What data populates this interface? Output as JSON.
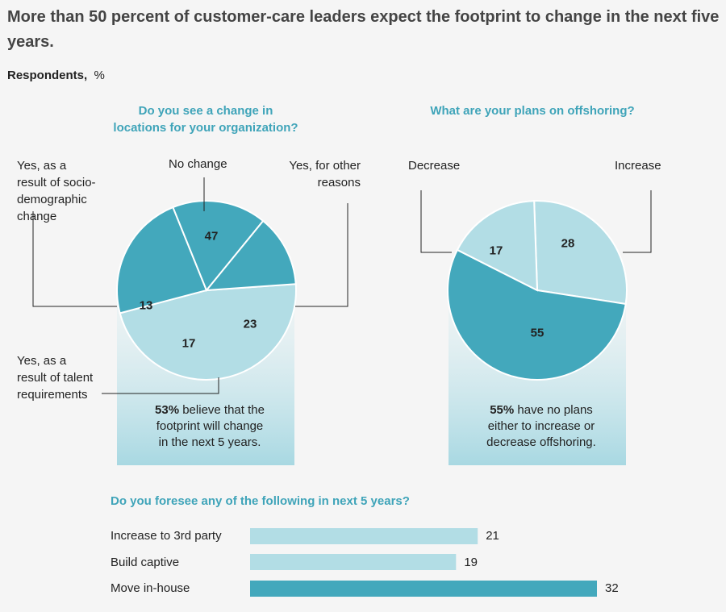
{
  "chart_data": [
    {
      "type": "pie",
      "title": "Do you see a change in locations for your organization?",
      "unit": "%",
      "slices": [
        {
          "label": "No change",
          "value": 47
        },
        {
          "label": "Yes, for other reasons",
          "value": 23
        },
        {
          "label": "Yes, as a result of talent requirements",
          "value": 17
        },
        {
          "label": "Yes, as a result of socio-demographic change",
          "value": 13
        }
      ],
      "note_bold": "53%",
      "note_text": "believe that the footprint will change in the next 5 years.",
      "colors": {
        "no_change": "#b2dde5",
        "change": "#43a8bc"
      }
    },
    {
      "type": "pie",
      "title": "What are your plans on offshoring?",
      "unit": "%",
      "slices": [
        {
          "label": "Increase",
          "value": 28
        },
        {
          "label": "No plans",
          "value": 55
        },
        {
          "label": "Decrease",
          "value": 17
        }
      ],
      "note_bold": "55%",
      "note_text": "have no plans either to increase or decrease offshoring.",
      "colors": {
        "light": "#b2dde5",
        "dark": "#43a8bc"
      }
    },
    {
      "type": "bar",
      "orientation": "horizontal",
      "title": "Do you foresee any of the following in next 5 years?",
      "categories": [
        "Increase to 3rd party",
        "Build captive",
        "Move in-house"
      ],
      "values": [
        21,
        19,
        32
      ],
      "colors": [
        "#b2dde5",
        "#b2dde5",
        "#43a8bc"
      ]
    }
  ],
  "header": {
    "title": "More than 50 percent of customer-care leaders expect the footprint to change in the next five years.",
    "subtitle_bold": "Respondents,",
    "subtitle_unit": "%"
  },
  "pie1_labels": {
    "q_line1": "Do you see a change in",
    "q_line2": "locations for your organization?",
    "socio": [
      "Yes, as a",
      "result of socio-",
      "demographic",
      "change"
    ],
    "no_change": "No change",
    "other": [
      "Yes, for other",
      "reasons"
    ],
    "talent": [
      "Yes, as a",
      "result of talent",
      "requirements"
    ],
    "note_lines": [
      "believe that the",
      "footprint will change",
      "in the next 5 years."
    ]
  },
  "pie2_labels": {
    "decrease": "Decrease",
    "increase": "Increase",
    "note_lines": [
      "have no plans",
      "either to increase or",
      "decrease offshoring."
    ]
  }
}
